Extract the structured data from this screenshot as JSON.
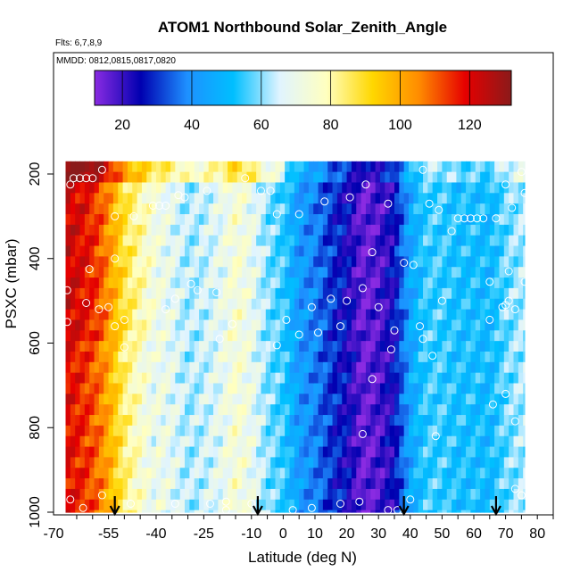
{
  "chart_data": {
    "type": "heatmap",
    "title": "ATOM1 Northbound Solar_Zenith_Angle",
    "flights_label": "Flts: 6,7,8,9",
    "dates_label": "MMDD: 0812,0815,0817,0820",
    "xlabel": "Latitude (deg N)",
    "ylabel": "PSXC (mbar)",
    "xlim": [
      -70,
      85
    ],
    "ylim": [
      1000,
      100
    ],
    "x_ticks": [
      -70,
      -55,
      -40,
      -25,
      -10,
      0,
      10,
      20,
      30,
      40,
      50,
      60,
      70,
      80
    ],
    "x_tick_labels": [
      "-70",
      "-55",
      "-40",
      "-25",
      "-10",
      "0",
      "10",
      "20",
      "30",
      "40",
      "50",
      "60",
      "70",
      "80"
    ],
    "y_ticks": [
      200,
      400,
      600,
      800,
      1000
    ],
    "y_tick_labels": [
      "200",
      "400",
      "600",
      "800",
      "1000"
    ],
    "colorbar": {
      "min": 12,
      "max": 132,
      "ticks": [
        20,
        40,
        60,
        80,
        100,
        120
      ],
      "tick_labels": [
        "20",
        "40",
        "60",
        "80",
        "100",
        "120"
      ],
      "colors": [
        "#8a2be2",
        "#0000b0",
        "#1e90ff",
        "#00bfff",
        "#e0f4ff",
        "#ffffc0",
        "#ffd700",
        "#ff8c00",
        "#e60000",
        "#8b1a1a"
      ]
    },
    "heat_extent": {
      "lat": [
        -68.5,
        76
      ],
      "p": [
        170,
        1000
      ]
    },
    "profile": {
      "lat": [
        -68,
        -62,
        -58,
        -55,
        -50,
        -45,
        -40,
        -35,
        -30,
        -25,
        -20,
        -15,
        -10,
        -5,
        0,
        5,
        10,
        15,
        20,
        25,
        30,
        35,
        40,
        45,
        50,
        55,
        60,
        65,
        70,
        75,
        76
      ],
      "sza": [
        123,
        118,
        112,
        104,
        88,
        80,
        72,
        68,
        62,
        64,
        68,
        75,
        70,
        60,
        55,
        42,
        38,
        30,
        25,
        15,
        18,
        25,
        45,
        55,
        55,
        52,
        52,
        50,
        58,
        62,
        62
      ]
    },
    "arrows_lat": [
      -53,
      -8,
      38,
      67
    ],
    "points": [
      {
        "lat": -66,
        "p": 210
      },
      {
        "lat": -64,
        "p": 210
      },
      {
        "lat": -62,
        "p": 210
      },
      {
        "lat": -60,
        "p": 210
      },
      {
        "lat": -67,
        "p": 225
      },
      {
        "lat": -57,
        "p": 190
      },
      {
        "lat": -12,
        "p": 210
      },
      {
        "lat": -53,
        "p": 300
      },
      {
        "lat": -47,
        "p": 300
      },
      {
        "lat": -41,
        "p": 275
      },
      {
        "lat": -39,
        "p": 275
      },
      {
        "lat": -37,
        "p": 275
      },
      {
        "lat": -33,
        "p": 250
      },
      {
        "lat": -31,
        "p": 255
      },
      {
        "lat": -24,
        "p": 240
      },
      {
        "lat": -7,
        "p": 240
      },
      {
        "lat": -4,
        "p": 240
      },
      {
        "lat": -2,
        "p": 295
      },
      {
        "lat": 5,
        "p": 295
      },
      {
        "lat": 13,
        "p": 265
      },
      {
        "lat": 21,
        "p": 255
      },
      {
        "lat": 26,
        "p": 225
      },
      {
        "lat": 33,
        "p": 270
      },
      {
        "lat": 44,
        "p": 190
      },
      {
        "lat": 46,
        "p": 270
      },
      {
        "lat": 49,
        "p": 285
      },
      {
        "lat": 53,
        "p": 335
      },
      {
        "lat": 55,
        "p": 305
      },
      {
        "lat": 57,
        "p": 305
      },
      {
        "lat": 59,
        "p": 305
      },
      {
        "lat": 61,
        "p": 305
      },
      {
        "lat": 63,
        "p": 305
      },
      {
        "lat": 67,
        "p": 305
      },
      {
        "lat": 70,
        "p": 225
      },
      {
        "lat": 72,
        "p": 280
      },
      {
        "lat": 75,
        "p": 195
      },
      {
        "lat": 76,
        "p": 245
      },
      {
        "lat": -53,
        "p": 400
      },
      {
        "lat": -61,
        "p": 425
      },
      {
        "lat": -68,
        "p": 475
      },
      {
        "lat": -62,
        "p": 505
      },
      {
        "lat": -58,
        "p": 520
      },
      {
        "lat": -55,
        "p": 515
      },
      {
        "lat": -50,
        "p": 545
      },
      {
        "lat": -53,
        "p": 560
      },
      {
        "lat": -68,
        "p": 550
      },
      {
        "lat": -34,
        "p": 495
      },
      {
        "lat": -29,
        "p": 460
      },
      {
        "lat": -27,
        "p": 475
      },
      {
        "lat": -21,
        "p": 480
      },
      {
        "lat": -37,
        "p": 520
      },
      {
        "lat": -20,
        "p": 590
      },
      {
        "lat": -16,
        "p": 555
      },
      {
        "lat": -2,
        "p": 605
      },
      {
        "lat": 1,
        "p": 545
      },
      {
        "lat": 5,
        "p": 580
      },
      {
        "lat": 9,
        "p": 515
      },
      {
        "lat": 11,
        "p": 575
      },
      {
        "lat": 15,
        "p": 495
      },
      {
        "lat": 18,
        "p": 560
      },
      {
        "lat": 20,
        "p": 500
      },
      {
        "lat": 25,
        "p": 470
      },
      {
        "lat": 28,
        "p": 385
      },
      {
        "lat": 30,
        "p": 515
      },
      {
        "lat": 35,
        "p": 570
      },
      {
        "lat": 38,
        "p": 410
      },
      {
        "lat": 41,
        "p": 415
      },
      {
        "lat": 43,
        "p": 560
      },
      {
        "lat": 44,
        "p": 590
      },
      {
        "lat": 47,
        "p": 630
      },
      {
        "lat": 50,
        "p": 500
      },
      {
        "lat": 65,
        "p": 455
      },
      {
        "lat": 65,
        "p": 545
      },
      {
        "lat": 69,
        "p": 515
      },
      {
        "lat": 70,
        "p": 510
      },
      {
        "lat": 71,
        "p": 500
      },
      {
        "lat": 71,
        "p": 430
      },
      {
        "lat": 73,
        "p": 520
      },
      {
        "lat": 76,
        "p": 455
      },
      {
        "lat": -50,
        "p": 610
      },
      {
        "lat": 34,
        "p": 615
      },
      {
        "lat": 28,
        "p": 685
      },
      {
        "lat": 66,
        "p": 745
      },
      {
        "lat": 70,
        "p": 720
      },
      {
        "lat": 73,
        "p": 785
      },
      {
        "lat": 48,
        "p": 820
      },
      {
        "lat": 25,
        "p": 815
      },
      {
        "lat": -67,
        "p": 970
      },
      {
        "lat": -63,
        "p": 990
      },
      {
        "lat": -57,
        "p": 960
      },
      {
        "lat": -48,
        "p": 980
      },
      {
        "lat": -34,
        "p": 980
      },
      {
        "lat": -23,
        "p": 980
      },
      {
        "lat": -18,
        "p": 975
      },
      {
        "lat": -18,
        "p": 995
      },
      {
        "lat": -10,
        "p": 980
      },
      {
        "lat": 3,
        "p": 995
      },
      {
        "lat": 9,
        "p": 990
      },
      {
        "lat": 18,
        "p": 980
      },
      {
        "lat": 24,
        "p": 975
      },
      {
        "lat": 33,
        "p": 995
      },
      {
        "lat": 36,
        "p": 995
      },
      {
        "lat": 40,
        "p": 970
      },
      {
        "lat": 73,
        "p": 945
      },
      {
        "lat": 75,
        "p": 960
      }
    ]
  }
}
